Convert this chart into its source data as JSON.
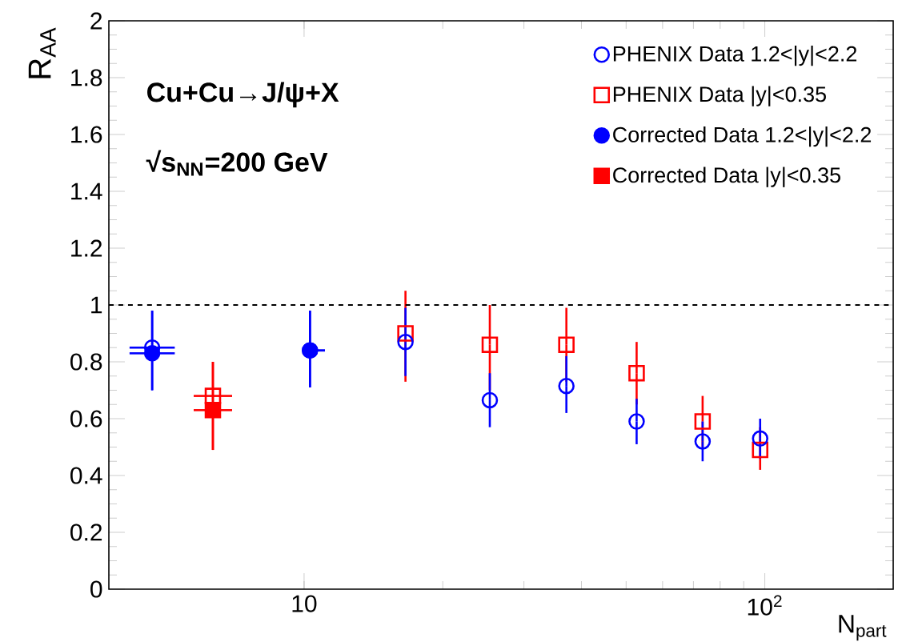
{
  "chart_data": {
    "type": "scatter",
    "xlabel": "N$_{part}$",
    "ylabel": "R$_{AA}$",
    "log": "x",
    "xlim": [
      3.77,
      190
    ],
    "ylim": [
      0,
      2
    ],
    "xticks": [
      10,
      {
        "value": 100,
        "label": "10$^{2}$"
      }
    ],
    "yticks": [
      0,
      0.2,
      0.4,
      0.6,
      0.8,
      1,
      1.2,
      1.4,
      1.6,
      1.8,
      2
    ],
    "grid": false,
    "legend": "top right",
    "annotations": [
      "Cu+Cu→J/ψ+X",
      "√s$_{NN}$=200 GeV"
    ],
    "ref_lines": [
      {
        "axis": "y",
        "value": 1,
        "color": "#000000",
        "line_style": "dashed"
      }
    ],
    "series": [
      {
        "name": "PHENIX Data 1.2<|y|<2.2",
        "color": "#0000ff",
        "marker": "circle",
        "x": [
          4.68,
          10.3,
          16.6,
          25.3,
          37.1,
          52.7,
          73.3,
          97.7
        ],
        "values": [
          0.85,
          0.84,
          0.87,
          0.665,
          0.715,
          0.59,
          0.52,
          0.53
        ],
        "errors": [
          [
            0.7,
            0.98
          ],
          [
            0.71,
            0.98
          ],
          [
            0.75,
            0.99
          ],
          [
            0.57,
            0.76
          ],
          [
            0.62,
            0.82
          ],
          [
            0.51,
            0.67
          ],
          [
            0.45,
            0.59
          ],
          [
            0.46,
            0.6
          ]
        ],
        "xerrors": [
          [
            4.18,
            5.24
          ],
          [
            9.92,
            11.1
          ],
          null,
          null,
          null,
          null,
          null,
          null
        ]
      },
      {
        "name": "PHENIX Data |y|<0.35",
        "color": "#ff0000",
        "marker": "square",
        "x": [
          6.34,
          16.6,
          25.3,
          37.1,
          52.7,
          73.3,
          97.7
        ],
        "values": [
          0.68,
          0.9,
          0.86,
          0.86,
          0.76,
          0.59,
          0.49
        ],
        "errors": [
          [
            0.49,
            0.8
          ],
          [
            0.73,
            1.05
          ],
          [
            0.7,
            1.0
          ],
          [
            0.73,
            0.99
          ],
          [
            0.65,
            0.87
          ],
          [
            0.5,
            0.68
          ],
          [
            0.42,
            0.57
          ]
        ],
        "xerrors": [
          [
            5.76,
            6.98
          ],
          null,
          null,
          null,
          null,
          null,
          null
        ]
      },
      {
        "name": "Corrected Data 1.2<|y|<2.2",
        "color": "#0000ff",
        "marker": "circle",
        "x": [
          4.68,
          10.3
        ],
        "values": [
          0.83,
          0.84
        ],
        "errors": [
          [
            0.7,
            0.98
          ],
          [
            0.71,
            0.98
          ]
        ],
        "xerrors": [
          [
            4.18,
            5.24
          ],
          [
            9.92,
            11.1
          ]
        ]
      },
      {
        "name": "Corrected Data |y|<0.35",
        "color": "#ff0000",
        "marker": "square",
        "x": [
          6.34
        ],
        "values": [
          0.63
        ],
        "errors": [
          [
            0.49,
            0.8
          ]
        ],
        "xerrors": [
          [
            5.76,
            6.98
          ]
        ]
      }
    ]
  }
}
